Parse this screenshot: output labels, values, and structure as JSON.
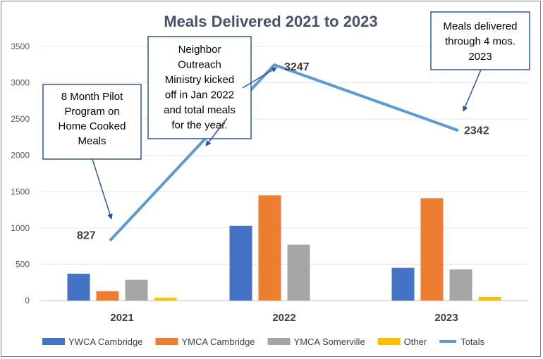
{
  "chart_data": {
    "type": "bar",
    "title": "Meals Delivered 2021 to 2023",
    "xlabel": "",
    "ylabel": "",
    "ylim": [
      0,
      3500
    ],
    "yticks": [
      0,
      500,
      1000,
      1500,
      2000,
      2500,
      3000,
      3500
    ],
    "grid": true,
    "legend_position": "bottom",
    "categories": [
      "2021",
      "2022",
      "2023"
    ],
    "series": [
      {
        "name": "YWCA Cambridge",
        "type": "bar",
        "color": "#4472C4",
        "values": [
          370,
          1030,
          450
        ]
      },
      {
        "name": "YMCA Cambridge",
        "type": "bar",
        "color": "#ED7D31",
        "values": [
          130,
          1450,
          1410
        ]
      },
      {
        "name": "YMCA Somerville",
        "type": "bar",
        "color": "#A5A5A5",
        "values": [
          285,
          770,
          430
        ]
      },
      {
        "name": "Other",
        "type": "bar",
        "color": "#FFC000",
        "values": [
          40,
          0,
          50
        ]
      },
      {
        "name": "Totals",
        "type": "line",
        "color": "#5B9BD5",
        "values": [
          827,
          3247,
          2342
        ]
      }
    ],
    "data_labels": [
      "827",
      "3247",
      "2342"
    ],
    "annotations": [
      {
        "lines": [
          "8 Month Pilot",
          "Program on",
          "Home Cooked",
          "Meals"
        ],
        "points_to": "2021"
      },
      {
        "lines": [
          "Neighbor",
          "Outreach",
          "Ministry kicked",
          "off in Jan 2022",
          "and total meals",
          "for the year."
        ],
        "points_to": "2022"
      },
      {
        "lines": [
          "Meals delivered",
          "through 4 mos.",
          "2023"
        ],
        "points_to": "2023"
      }
    ]
  }
}
